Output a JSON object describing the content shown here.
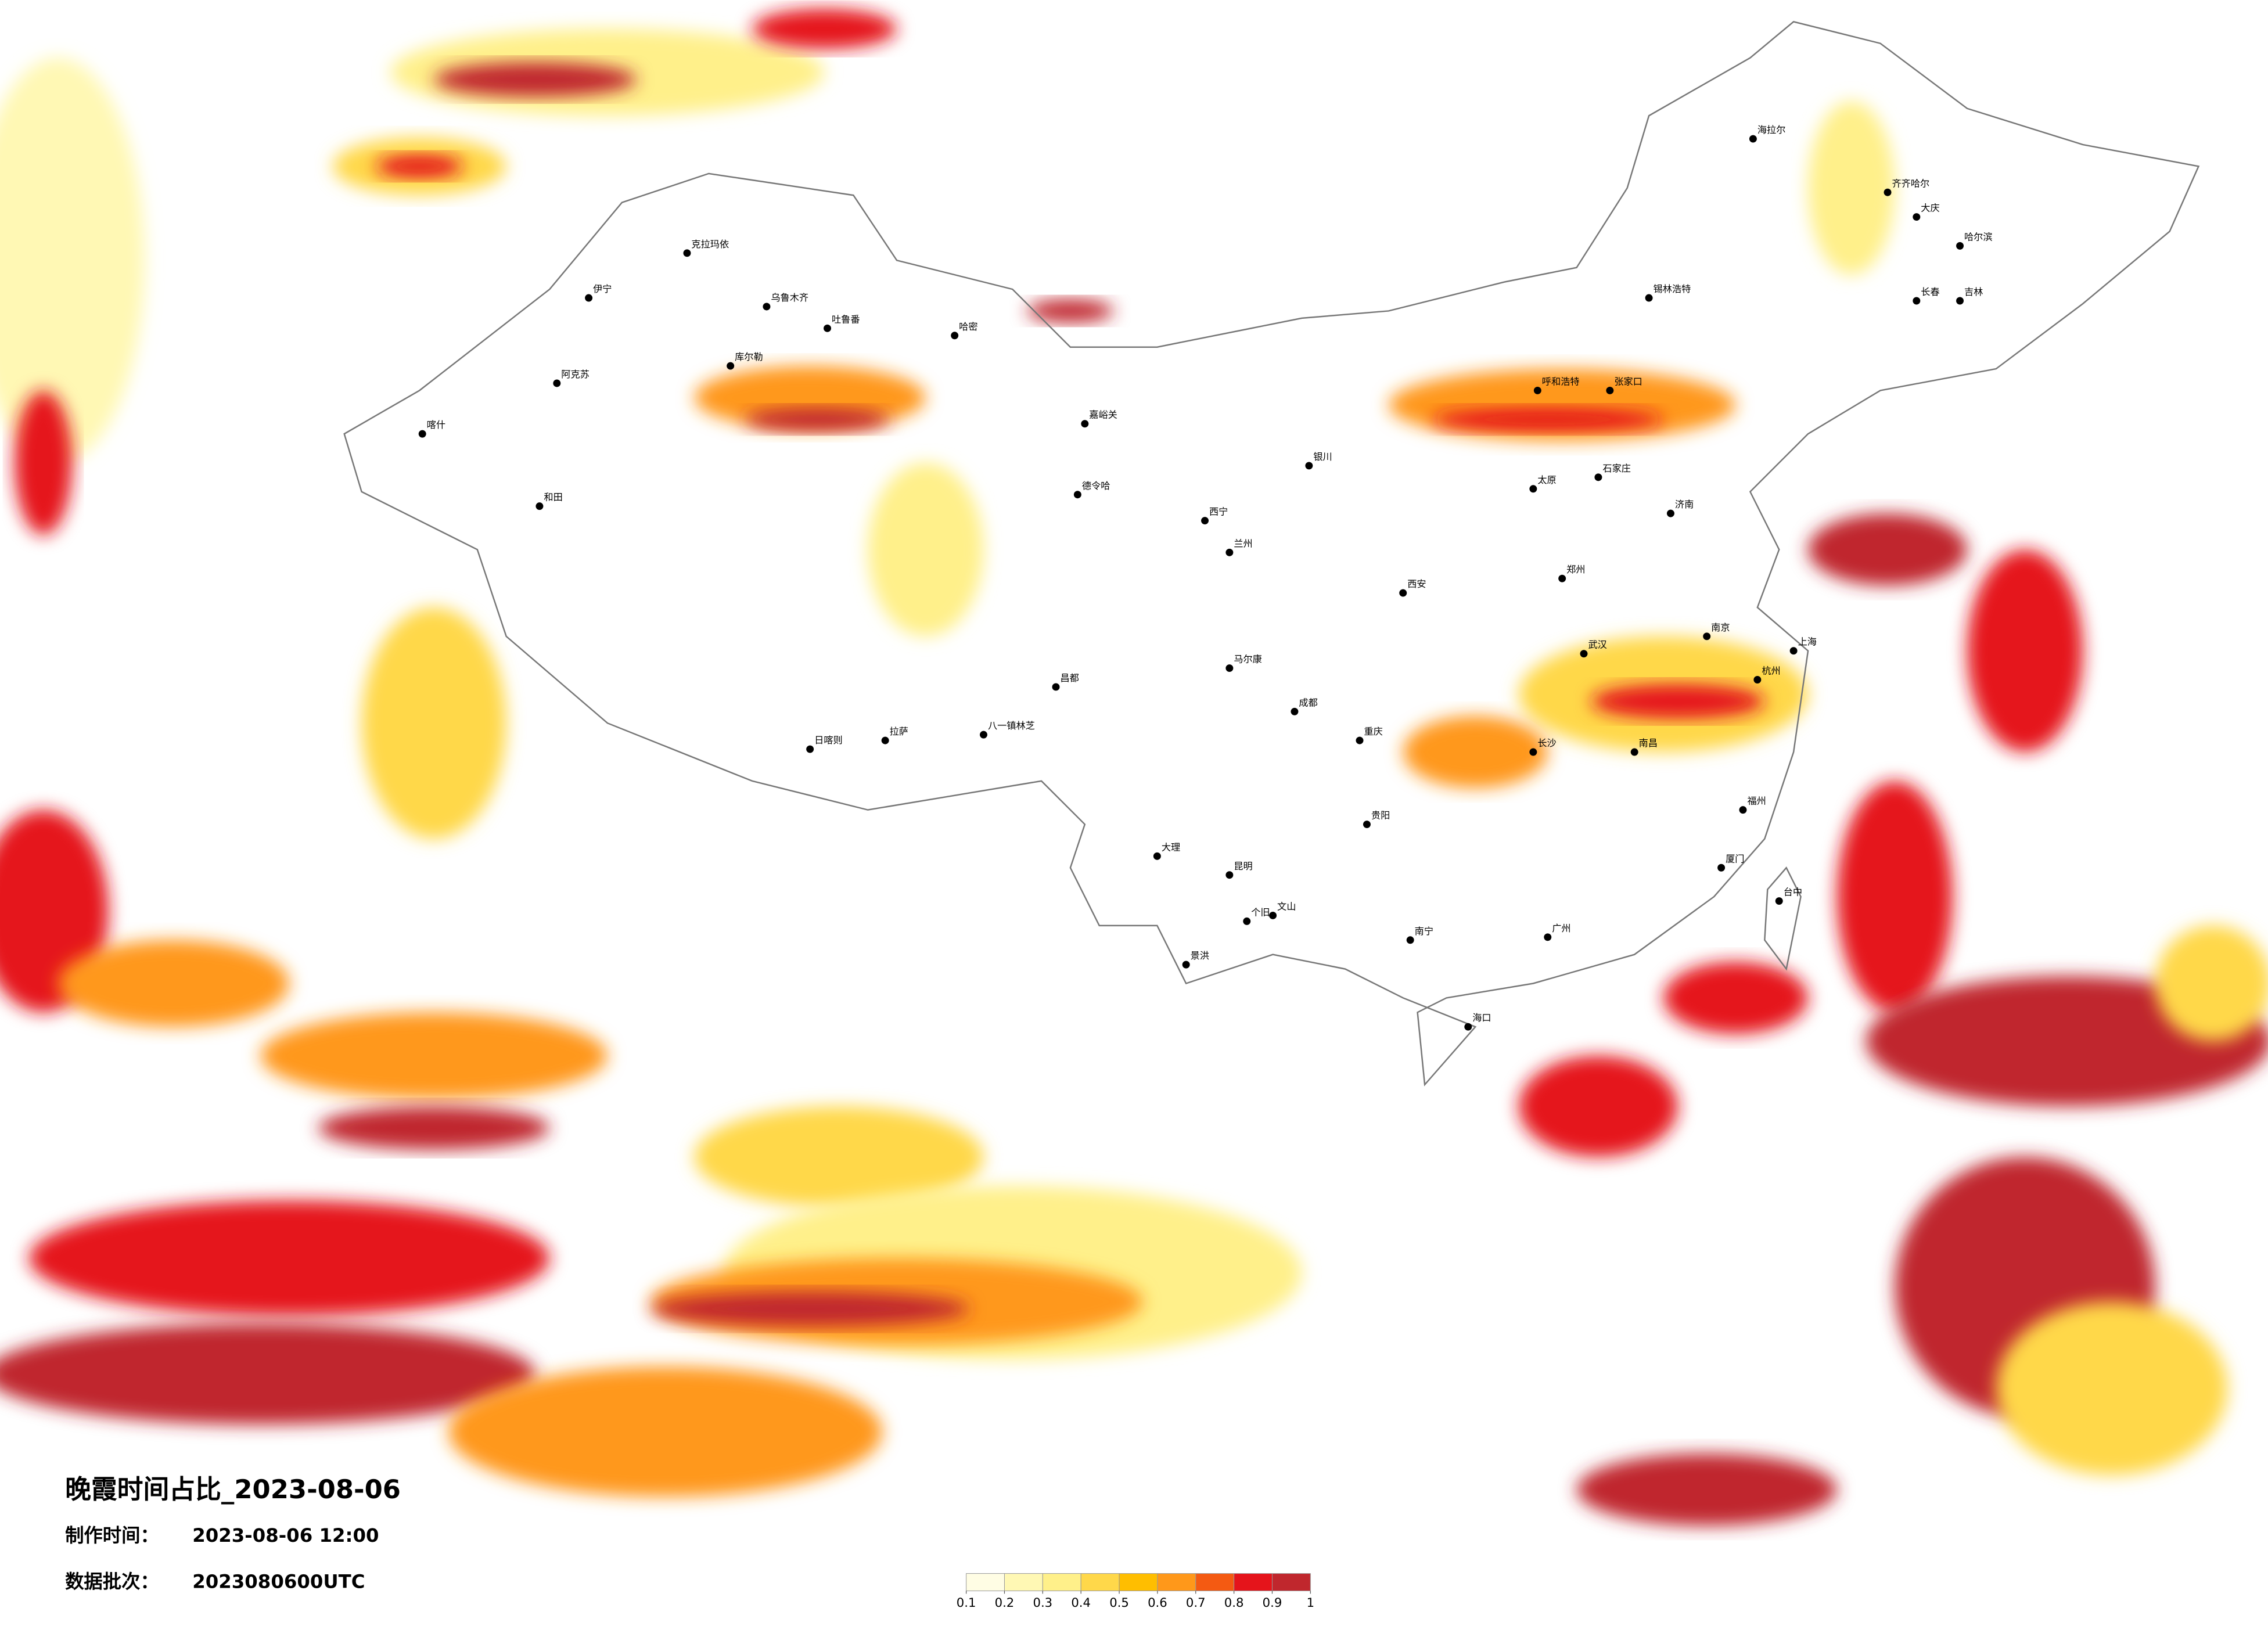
{
  "header": {
    "title": "晚霞时间占比_2023-08-06"
  },
  "info": [
    {
      "label": "制作时间：",
      "value": "2023-08-06 12:00"
    },
    {
      "label": "数据批次：",
      "value": "2023080600UTC"
    }
  ],
  "colorbar": {
    "ticks": [
      0.1,
      0.2,
      0.3,
      0.4,
      0.5,
      0.6,
      0.7,
      0.8,
      0.9,
      1
    ],
    "colors": [
      "#fffde4",
      "#fff8b4",
      "#fff08a",
      "#ffd84a",
      "#ffbe00",
      "#ff981a",
      "#f45a12",
      "#e5141b",
      "#c0272d"
    ]
  },
  "cities": [
    "乌鲁木齐",
    "克拉玛依",
    "伊宁",
    "阿克苏",
    "和田",
    "喀什",
    "哈密",
    "库尔勒",
    "吐鲁番",
    "嘉峪关",
    "德令哈",
    "日喀则",
    "拉萨",
    "八一镇林芝",
    "昌都",
    "马尔康",
    "西宁",
    "兰州",
    "银川",
    "海拉尔",
    "齐齐哈尔",
    "大庆",
    "哈尔滨",
    "长春",
    "吉林",
    "锡林浩特",
    "呼和浩特",
    "张家口",
    "石家庄",
    "太原",
    "西安",
    "郑州",
    "济南",
    "南京",
    "上海",
    "杭州",
    "福州",
    "厦门",
    "广州",
    "南宁",
    "海口",
    "昆明",
    "贵阳",
    "成都",
    "重庆",
    "长沙",
    "南昌",
    "武汉",
    "台中",
    "大理",
    "景洪",
    "个旧",
    "文山"
  ]
}
